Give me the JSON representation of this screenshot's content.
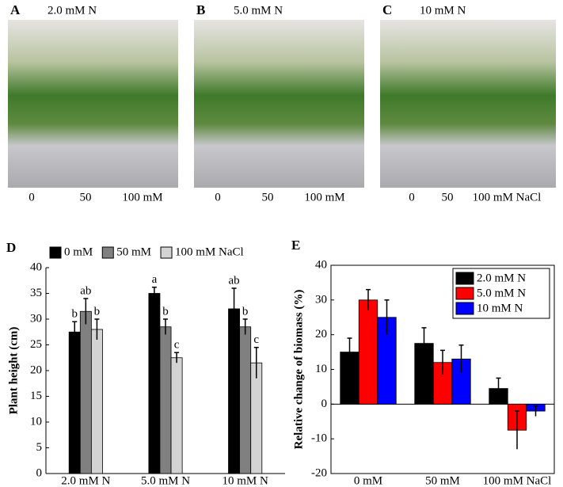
{
  "photos": [
    {
      "panel": "A",
      "title": "2.0 mM N",
      "labels": [
        "0",
        "50",
        "100 mM"
      ]
    },
    {
      "panel": "B",
      "title": "5.0 mM N",
      "labels": [
        "0",
        "50",
        "100 mM"
      ]
    },
    {
      "panel": "C",
      "title": "10 mM N",
      "labels": [
        "0",
        "50",
        "100 mM NaCl"
      ]
    }
  ],
  "chart_data": [
    {
      "type": "bar",
      "panel": "D",
      "y_label": "Plant height (cm)",
      "categories": [
        "2.0 mM N",
        "5.0 mM N",
        "10 mM N"
      ],
      "series": [
        {
          "name": "0 mM",
          "color": "#000000",
          "values": [
            27.5,
            35,
            32
          ],
          "errors": [
            2,
            1.2,
            4
          ],
          "letters": [
            "b",
            "a",
            "ab"
          ]
        },
        {
          "name": "50 mM",
          "color": "#808080",
          "values": [
            31.5,
            28.5,
            28.5
          ],
          "errors": [
            2.5,
            1.5,
            1.5
          ],
          "letters": [
            "ab",
            "b",
            "b"
          ]
        },
        {
          "name": "100 mM NaCl",
          "color": "#d3d3d3",
          "values": [
            28,
            22.5,
            21.5
          ],
          "errors": [
            2,
            1,
            3
          ],
          "letters": [
            "b",
            "c",
            "c"
          ]
        }
      ],
      "ylim": [
        0,
        40
      ],
      "yticks": [
        0,
        5,
        10,
        15,
        20,
        25,
        30,
        35,
        40
      ],
      "legend": "top"
    },
    {
      "type": "bar",
      "panel": "E",
      "y_label": "Relative change of biomass (%)",
      "categories": [
        "0 mM",
        "50 mM",
        "100 mM NaCl"
      ],
      "series": [
        {
          "name": "2.0 mM N",
          "color": "#000000",
          "values": [
            15,
            17.5,
            4.5
          ],
          "errors": [
            4,
            4.5,
            3
          ]
        },
        {
          "name": "5.0 mM N",
          "color": "#ff0000",
          "values": [
            30,
            12,
            -7.5
          ],
          "errors": [
            3,
            3.5,
            5.5
          ]
        },
        {
          "name": "10 mM N",
          "color": "#0000ff",
          "values": [
            25,
            13,
            -2
          ],
          "errors": [
            5,
            4,
            1.5
          ]
        }
      ],
      "ylim": [
        -20,
        40
      ],
      "yticks": [
        -20,
        -10,
        0,
        10,
        20,
        30,
        40
      ],
      "legend": "upper right"
    }
  ]
}
